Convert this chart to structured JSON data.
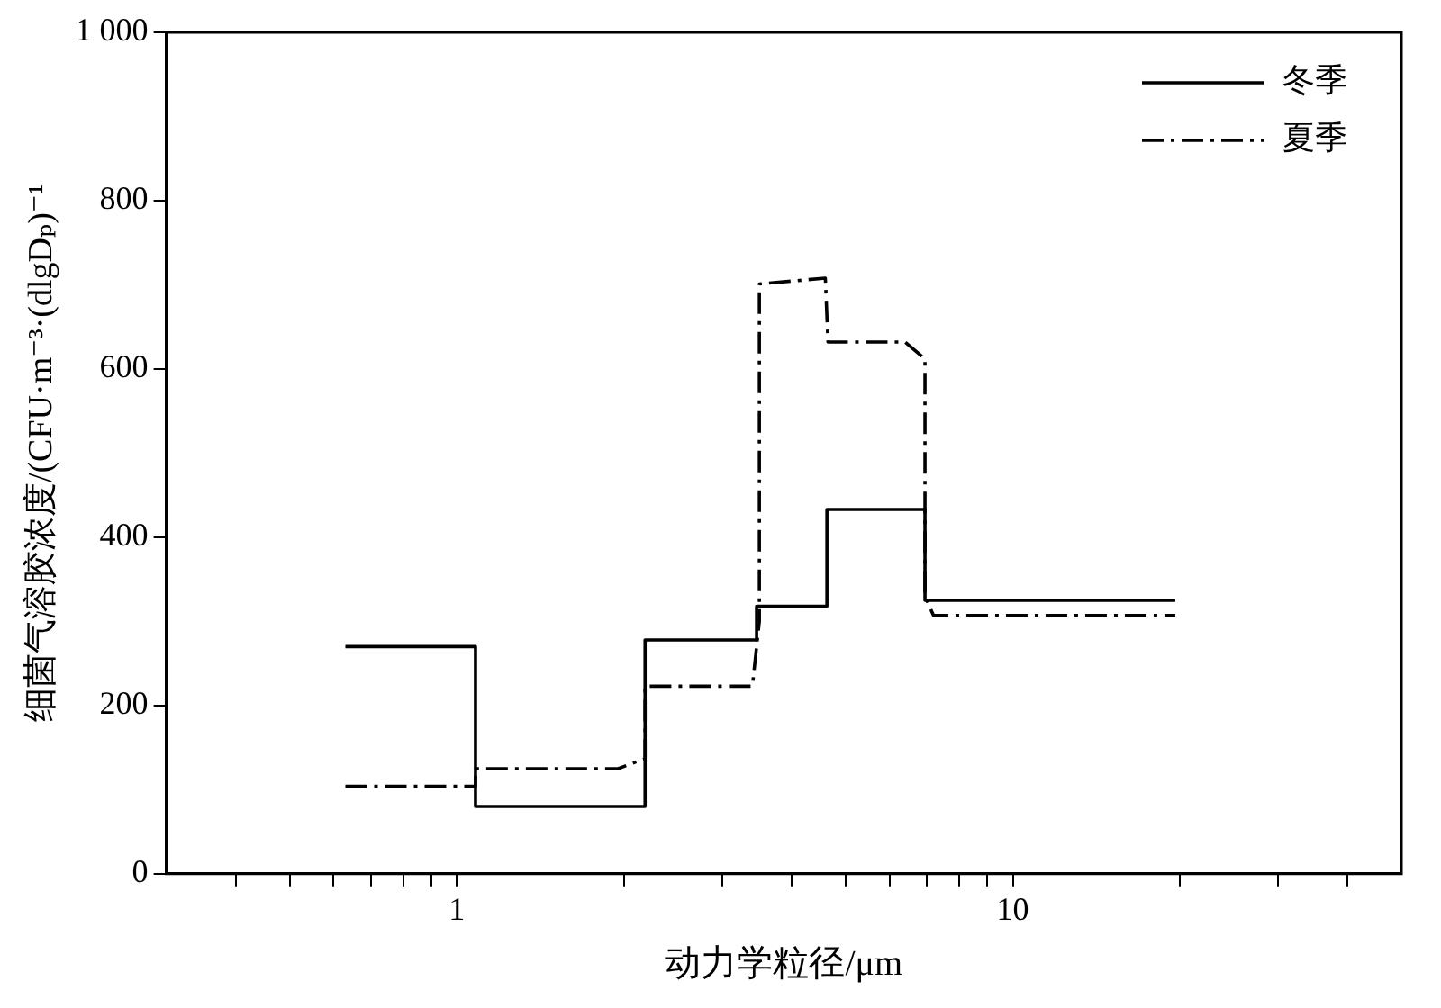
{
  "chart_data": {
    "type": "line",
    "xlabel": "动力学粒径/μm",
    "ylabel": "细菌气溶胶浓度/(CFU·m⁻³·(dlgDₚ)⁻¹",
    "log": "x",
    "grid": false,
    "legend": "top right",
    "marker": "none",
    "xlim": [
      0.3,
      50
    ],
    "xticks": [
      {
        "value": 0.4,
        "label": null
      },
      {
        "value": 0.5,
        "label": null
      },
      {
        "value": 0.6,
        "label": null
      },
      {
        "value": 0.7,
        "label": null
      },
      {
        "value": 0.8,
        "label": null
      },
      {
        "value": 0.9,
        "label": null
      },
      1,
      {
        "value": 2,
        "label": null
      },
      {
        "value": 3,
        "label": null
      },
      {
        "value": 4,
        "label": null
      },
      {
        "value": 5,
        "label": null
      },
      {
        "value": 6,
        "label": null
      },
      {
        "value": 7,
        "label": null
      },
      {
        "value": 8,
        "label": null
      },
      {
        "value": 9,
        "label": null
      },
      10,
      {
        "value": 20,
        "label": null
      },
      {
        "value": 30,
        "label": null
      },
      {
        "value": 40,
        "label": null
      }
    ],
    "ylim": [
      0,
      1000
    ],
    "yticks": [
      0,
      200,
      400,
      600,
      800,
      {
        "value": 1000,
        "label": "1 000"
      }
    ],
    "series": [
      {
        "name": "冬季",
        "color": "#000000",
        "line_style": "solid",
        "x": [
          0.63,
          1.08,
          1.08,
          2.18,
          2.18,
          3.46,
          3.46,
          4.63,
          4.63,
          6.95,
          6.95,
          19.6
        ],
        "values": [
          270,
          270,
          80,
          80,
          278,
          278,
          318,
          318,
          433,
          433,
          325,
          325
        ]
      },
      {
        "name": "夏季",
        "color": "#000000",
        "line_style": "dashed",
        "x": [
          0.63,
          1.08,
          1.08,
          1.95,
          2.18,
          2.18,
          3.4,
          3.5,
          3.5,
          4.6,
          4.65,
          6.4,
          6.95,
          6.95,
          7.2,
          19.6
        ],
        "values": [
          104,
          104,
          125,
          125,
          137,
          223,
          223,
          300,
          701,
          708,
          632,
          632,
          612,
          330,
          307,
          307
        ]
      }
    ]
  }
}
